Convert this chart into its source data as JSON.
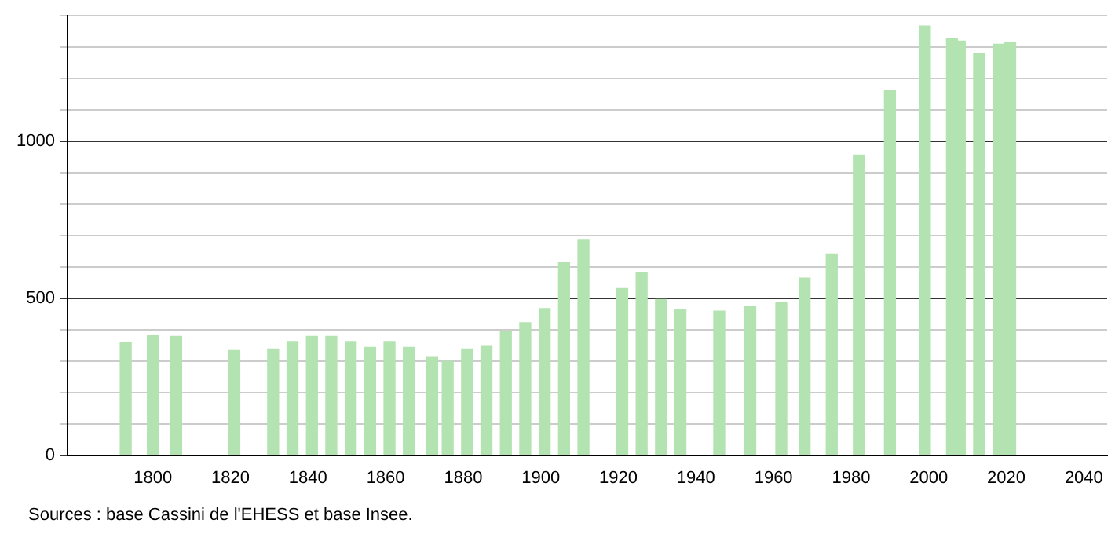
{
  "chart_data": {
    "type": "bar",
    "color": "#b3e3b0",
    "x": [
      1793,
      1800,
      1806,
      1821,
      1831,
      1836,
      1841,
      1846,
      1851,
      1856,
      1861,
      1866,
      1872,
      1876,
      1881,
      1886,
      1891,
      1896,
      1901,
      1906,
      1911,
      1921,
      1926,
      1931,
      1936,
      1946,
      1954,
      1962,
      1968,
      1975,
      1982,
      1990,
      1999,
      2006,
      2008,
      2013,
      2018,
      2021
    ],
    "values": [
      360,
      380,
      378,
      333,
      338,
      362,
      378,
      378,
      362,
      343,
      362,
      343,
      314,
      298,
      338,
      349,
      395,
      422,
      467,
      615,
      687,
      531,
      580,
      496,
      464,
      459,
      473,
      488,
      564,
      641,
      956,
      1163,
      1367,
      1328,
      1319,
      1280,
      1309,
      1315
    ],
    "xlim": [
      1778,
      2046
    ],
    "xticks": [
      1800,
      1820,
      1840,
      1860,
      1880,
      1900,
      1920,
      1940,
      1960,
      1980,
      2000,
      2020,
      2040
    ],
    "ylim": [
      0,
      1400
    ],
    "yticks": [
      0,
      {
        "value": 100,
        "label": null
      },
      {
        "value": 200,
        "label": null
      },
      {
        "value": 300,
        "label": null
      },
      {
        "value": 400,
        "label": null
      },
      500,
      {
        "value": 600,
        "label": null
      },
      {
        "value": 700,
        "label": null
      },
      {
        "value": 800,
        "label": null
      },
      {
        "value": 900,
        "label": null
      },
      1000,
      {
        "value": 1100,
        "label": null
      },
      {
        "value": 1200,
        "label": null
      },
      {
        "value": 1300,
        "label": null
      },
      {
        "value": 1400,
        "label": null
      }
    ],
    "grid": "y",
    "legend": false,
    "annotations": [
      "Sources : base Cassini de l'EHESS et base Insee."
    ]
  }
}
